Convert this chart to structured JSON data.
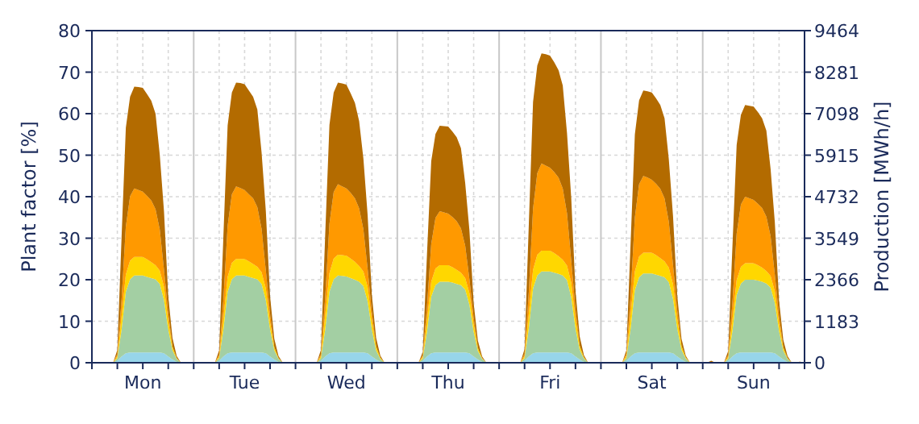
{
  "chart_data": {
    "type": "area",
    "stacked": true,
    "ylabel": "Plant factor [%]",
    "y2label": "Production [MWh/h]",
    "categories": [
      null,
      null,
      null,
      null,
      null,
      null,
      null,
      null,
      null,
      null,
      null,
      null,
      "Mon",
      null,
      null,
      null,
      null,
      null,
      null,
      null,
      null,
      null,
      null,
      null,
      null,
      null,
      null,
      null,
      null,
      null,
      null,
      null,
      null,
      null,
      null,
      null,
      "Tue",
      null,
      null,
      null,
      null,
      null,
      null,
      null,
      null,
      null,
      null,
      null,
      null,
      null,
      null,
      null,
      null,
      null,
      null,
      null,
      null,
      null,
      null,
      null,
      "Wed",
      null,
      null,
      null,
      null,
      null,
      null,
      null,
      null,
      null,
      null,
      null,
      null,
      null,
      null,
      null,
      null,
      null,
      null,
      null,
      null,
      null,
      null,
      null,
      "Thu",
      null,
      null,
      null,
      null,
      null,
      null,
      null,
      null,
      null,
      null,
      null,
      null,
      null,
      null,
      null,
      null,
      null,
      null,
      null,
      null,
      null,
      null,
      null,
      "Fri",
      null,
      null,
      null,
      null,
      null,
      null,
      null,
      null,
      null,
      null,
      null,
      null,
      null,
      null,
      null,
      null,
      null,
      null,
      null,
      null,
      null,
      null,
      null,
      "Sat",
      null,
      null,
      null,
      null,
      null,
      null,
      null,
      null,
      null,
      null,
      null,
      null,
      null,
      null,
      null,
      null,
      null,
      null,
      null,
      null,
      null,
      null,
      null,
      "Sun",
      null,
      null,
      null,
      null,
      null,
      null,
      null,
      null,
      null,
      null,
      null
    ],
    "ylim": [
      0,
      80
    ],
    "yticks": [
      0,
      10,
      20,
      30,
      40,
      50,
      60,
      70,
      80
    ],
    "y2lim": [
      0,
      9464
    ],
    "y2ticks": [
      0,
      1183,
      2366,
      3549,
      4732,
      5915,
      7098,
      8281,
      9464
    ],
    "grid": true,
    "series": [
      {
        "color": "#97d5ea",
        "values": [
          0,
          0,
          0,
          0,
          0,
          0,
          0.5,
          1.5,
          2.3,
          2.5,
          2.5,
          2.5,
          2.5,
          2.5,
          2.5,
          2.5,
          2.5,
          2.3,
          1.5,
          0.8,
          0.2,
          0,
          0,
          0,
          0,
          0,
          0,
          0,
          0,
          0,
          0.5,
          1.5,
          2.3,
          2.5,
          2.5,
          2.5,
          2.5,
          2.5,
          2.5,
          2.5,
          2.5,
          2.3,
          1.5,
          0.8,
          0.2,
          0,
          0,
          0,
          0,
          0,
          0,
          0,
          0,
          0,
          0.5,
          1.5,
          2.3,
          2.5,
          2.5,
          2.5,
          2.5,
          2.5,
          2.5,
          2.5,
          2.5,
          2.3,
          1.5,
          0.8,
          0.2,
          0,
          0,
          0,
          0,
          0,
          0,
          0,
          0,
          0,
          0.5,
          1.5,
          2.3,
          2.5,
          2.5,
          2.5,
          2.5,
          2.5,
          2.5,
          2.5,
          2.5,
          2.3,
          1.5,
          0.8,
          0.2,
          0,
          0,
          0,
          0,
          0,
          0,
          0,
          0,
          0,
          0.5,
          1.5,
          2.3,
          2.5,
          2.5,
          2.5,
          2.5,
          2.5,
          2.5,
          2.5,
          2.5,
          2.3,
          1.5,
          0.8,
          0.2,
          0,
          0,
          0,
          0,
          0,
          0,
          0,
          0,
          0,
          0.5,
          1.5,
          2.3,
          2.5,
          2.5,
          2.5,
          2.5,
          2.5,
          2.5,
          2.5,
          2.5,
          2.3,
          1.5,
          0.8,
          0.2,
          0,
          0,
          0,
          0,
          0,
          0,
          0,
          0,
          0,
          0.5,
          1.5,
          2.3,
          2.5,
          2.5,
          2.5,
          2.5,
          2.5,
          2.5,
          2.5,
          2.5,
          2.3,
          1.5,
          0.8,
          0.2,
          0,
          0,
          0
        ]
      },
      {
        "color": "#a3cfa3",
        "values": [
          0,
          0,
          0,
          0,
          0,
          0,
          0.6,
          6.5,
          14.8,
          17.6,
          18.5,
          18.5,
          18.5,
          18.2,
          17.9,
          17.6,
          16.5,
          12.8,
          6.5,
          2.2,
          0.7,
          0,
          0,
          0,
          0,
          0,
          0,
          0,
          0,
          0,
          0.6,
          6.5,
          14.8,
          17.6,
          18.5,
          18.5,
          18.5,
          18.2,
          17.9,
          17.6,
          16.5,
          12.8,
          6.5,
          2.2,
          0.7,
          0,
          0,
          0,
          0,
          0,
          0,
          0,
          0,
          0,
          0.6,
          6.5,
          14.8,
          17.6,
          18.5,
          18.4,
          18.3,
          17.9,
          17.5,
          17,
          16,
          12.5,
          6.5,
          2.2,
          0.7,
          0,
          0,
          0,
          0,
          0,
          0,
          0,
          0,
          0,
          0.5,
          6,
          13.6,
          16.2,
          17,
          17,
          17,
          16.8,
          16.5,
          16.2,
          15.1,
          11.7,
          6,
          2,
          0.7,
          0,
          0,
          0,
          0,
          0,
          0,
          0,
          0,
          0,
          0.6,
          6.8,
          15.6,
          18.5,
          19.5,
          19.5,
          19.5,
          19.2,
          18.9,
          18.5,
          17.4,
          13.5,
          6.8,
          2.3,
          0.8,
          0,
          0,
          0,
          0,
          0,
          0,
          0,
          0,
          0,
          0.6,
          6.7,
          15.2,
          18.1,
          19,
          19,
          19,
          18.7,
          18.4,
          18.1,
          16.9,
          13.1,
          6.7,
          2.3,
          0.8,
          0,
          0,
          0,
          0,
          0,
          0,
          0,
          0,
          0,
          0.5,
          6.1,
          14,
          16.6,
          17.5,
          17.5,
          17.5,
          17.3,
          17,
          16.6,
          15.6,
          12.1,
          6.1,
          2.1,
          0.7,
          0,
          0,
          0
        ]
      },
      {
        "color": "#ffd700",
        "values": [
          0,
          0,
          0,
          0,
          0,
          0,
          0.5,
          3.2,
          4.1,
          4.5,
          4.5,
          4.5,
          4.5,
          4.2,
          3.8,
          3.4,
          3.2,
          3.2,
          2,
          0.9,
          0.2,
          0,
          0,
          0,
          0,
          0,
          0,
          0,
          0,
          0,
          0.4,
          2.8,
          3.6,
          4,
          4,
          4,
          4,
          3.7,
          3.4,
          3,
          2.8,
          2.8,
          1.8,
          0.8,
          0.2,
          0,
          0,
          0,
          0,
          0,
          0,
          0,
          0,
          0,
          0.5,
          3.5,
          4.5,
          5,
          5,
          5,
          5,
          4.7,
          4.3,
          3.8,
          3.5,
          3.5,
          2.3,
          1,
          0.3,
          0,
          0,
          0,
          0,
          0,
          0,
          0,
          0,
          0,
          0.4,
          2.8,
          3.6,
          4,
          4,
          4,
          4,
          3.7,
          3.4,
          3,
          2.8,
          2.8,
          1.8,
          0.8,
          0.2,
          0,
          0,
          0,
          0,
          0,
          0,
          0,
          0,
          0,
          0.5,
          3.5,
          4.5,
          5,
          5,
          5,
          5,
          4.7,
          4.3,
          3.8,
          3.5,
          3.5,
          2.3,
          1,
          0.3,
          0,
          0,
          0,
          0,
          0,
          0,
          0,
          0,
          0,
          0.5,
          3.5,
          4.5,
          5,
          5,
          5,
          5,
          4.7,
          4.3,
          3.8,
          3.5,
          3.5,
          2.3,
          1,
          0.3,
          0,
          0,
          0,
          0,
          0,
          0,
          0,
          0,
          0,
          0.4,
          2.8,
          3.6,
          4,
          4,
          4,
          4,
          3.7,
          3.4,
          3,
          2.8,
          2.8,
          1.8,
          0.8,
          0.2,
          0,
          0,
          0
        ]
      },
      {
        "color": "#ff9900",
        "values": [
          0,
          0,
          0,
          0,
          0,
          0,
          0.5,
          4.1,
          11.6,
          15.5,
          16.5,
          16.1,
          15.7,
          15.3,
          14.9,
          13.5,
          9.9,
          4.1,
          2,
          0,
          0,
          0,
          0,
          0,
          0,
          0,
          0,
          0,
          0,
          0,
          0.5,
          4.4,
          12.3,
          16.5,
          17.5,
          17.1,
          16.6,
          16.2,
          15.8,
          14.4,
          10.5,
          4.4,
          2.1,
          0,
          0,
          0,
          0,
          0,
          0,
          0,
          0,
          0,
          0,
          0,
          0.5,
          4.3,
          11.9,
          16,
          17,
          16.6,
          16.2,
          15.8,
          15.3,
          13.9,
          10.2,
          4.3,
          2,
          0,
          0,
          0,
          0,
          0,
          0,
          0,
          0,
          0,
          0,
          0,
          0.4,
          3.3,
          9.1,
          12.2,
          13,
          12.7,
          12.4,
          12.1,
          11.7,
          10.7,
          7.8,
          3.3,
          1.6,
          0,
          0,
          0,
          0,
          0,
          0,
          0,
          0,
          0,
          0,
          0,
          0.6,
          5.3,
          14.7,
          19.7,
          21,
          20.5,
          20,
          19.5,
          18.9,
          17.2,
          12.6,
          5.3,
          2.5,
          0,
          0,
          0,
          0,
          0,
          0,
          0,
          0,
          0,
          0,
          0,
          0.6,
          4.6,
          13,
          17.4,
          18.5,
          18.1,
          17.6,
          17.2,
          16.7,
          15.2,
          11.1,
          4.6,
          2.2,
          0,
          0,
          0,
          0,
          0,
          0,
          0,
          0,
          0,
          0,
          0,
          0.5,
          4,
          11.2,
          15,
          16,
          15.6,
          15.2,
          14.8,
          14.4,
          13.1,
          9.6,
          4,
          1.9,
          0,
          0,
          0,
          0,
          0
        ]
      },
      {
        "color": "#b36b00",
        "values": [
          0,
          0,
          0,
          0,
          0,
          0,
          1,
          15,
          23.8,
          24,
          24.5,
          24.8,
          25,
          24.5,
          24,
          23,
          18,
          14,
          4,
          2,
          0.5,
          0,
          0,
          0,
          0,
          0,
          0,
          0,
          0,
          0,
          1,
          15.3,
          24.2,
          24.5,
          25,
          25.3,
          25.5,
          25,
          24.5,
          23.5,
          18.4,
          14.3,
          4.1,
          2,
          0.5,
          0,
          0,
          0,
          0,
          0,
          0,
          0,
          0,
          0,
          1,
          15,
          23.8,
          24,
          24.5,
          24.8,
          25,
          24,
          23,
          21,
          17,
          13,
          4,
          2,
          0.5,
          0,
          0,
          0,
          0,
          0,
          0,
          0,
          0,
          0,
          0.8,
          12.6,
          20,
          20.2,
          20.6,
          20.8,
          21,
          20.6,
          20.2,
          19.3,
          15.1,
          11.8,
          3.4,
          1.7,
          0.4,
          0,
          0,
          0,
          0,
          0,
          0,
          0,
          0,
          0,
          1.1,
          16.2,
          25.7,
          25.9,
          26.5,
          26.8,
          27,
          26.5,
          25.9,
          24.8,
          19.4,
          15.1,
          4.3,
          2.2,
          0.5,
          0,
          0,
          0,
          0,
          0,
          0,
          0,
          0,
          0,
          0.8,
          12.6,
          20,
          20.2,
          20.6,
          20.8,
          21,
          20.6,
          20.2,
          19.3,
          15.1,
          11.8,
          3.4,
          1.7,
          0.4,
          0,
          0,
          0,
          0,
          0,
          0.5,
          0,
          0,
          0,
          0.9,
          13.5,
          21.4,
          21.6,
          22.1,
          22.3,
          22.5,
          22.1,
          21.6,
          20.7,
          16.2,
          12.6,
          3.6,
          1.8,
          0.5,
          0,
          0,
          0.3
        ]
      }
    ]
  }
}
